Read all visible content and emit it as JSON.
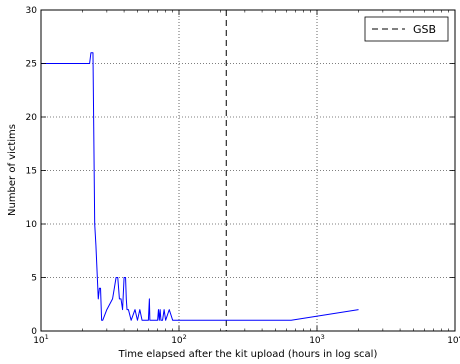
{
  "chart_data": {
    "type": "line",
    "xlabel": "Time elapsed after the kit upload (hours in log scal)",
    "ylabel": "Number of victims",
    "x_scale": "log",
    "xlim": [
      10,
      10000
    ],
    "ylim": [
      0,
      30
    ],
    "x_ticks": [
      {
        "value": 10,
        "base": "10",
        "exp": "1"
      },
      {
        "value": 100,
        "base": "10",
        "exp": "2"
      },
      {
        "value": 1000,
        "base": "10",
        "exp": "3"
      },
      {
        "value": 10000,
        "base": "10",
        "exp": "4"
      }
    ],
    "y_ticks": [
      0,
      5,
      10,
      15,
      20,
      25,
      30
    ],
    "grid": true,
    "legend": {
      "position": "top-right",
      "entries": [
        {
          "label": "GSB",
          "style": "dashed",
          "color": "#000000"
        }
      ]
    },
    "gsb_line_x": 220,
    "series": [
      {
        "color": "#0000ff",
        "x": [
          10,
          22.5,
          23,
          23.8,
          24.5,
          25,
          26,
          26.5,
          27,
          27.5,
          28,
          30,
          33,
          35,
          36,
          37,
          38,
          39,
          40,
          41,
          41.5,
          42,
          43,
          45,
          48,
          50,
          52,
          54,
          56,
          60,
          61,
          61.5,
          62,
          65,
          70,
          71,
          72,
          73,
          74,
          76,
          78,
          80,
          85,
          90,
          95,
          100,
          200,
          300,
          650,
          2000
        ],
        "values": [
          25,
          25,
          26,
          26,
          10,
          8,
          3,
          4,
          4,
          1,
          1,
          2,
          3,
          5,
          5,
          3,
          3,
          2,
          5,
          5,
          3,
          2,
          2,
          1,
          2,
          1,
          2,
          1,
          1,
          1,
          3,
          1,
          1,
          1,
          1,
          2,
          1,
          2,
          1,
          1,
          2,
          1,
          2,
          1,
          1,
          1,
          1,
          1,
          1,
          2
        ]
      }
    ]
  }
}
